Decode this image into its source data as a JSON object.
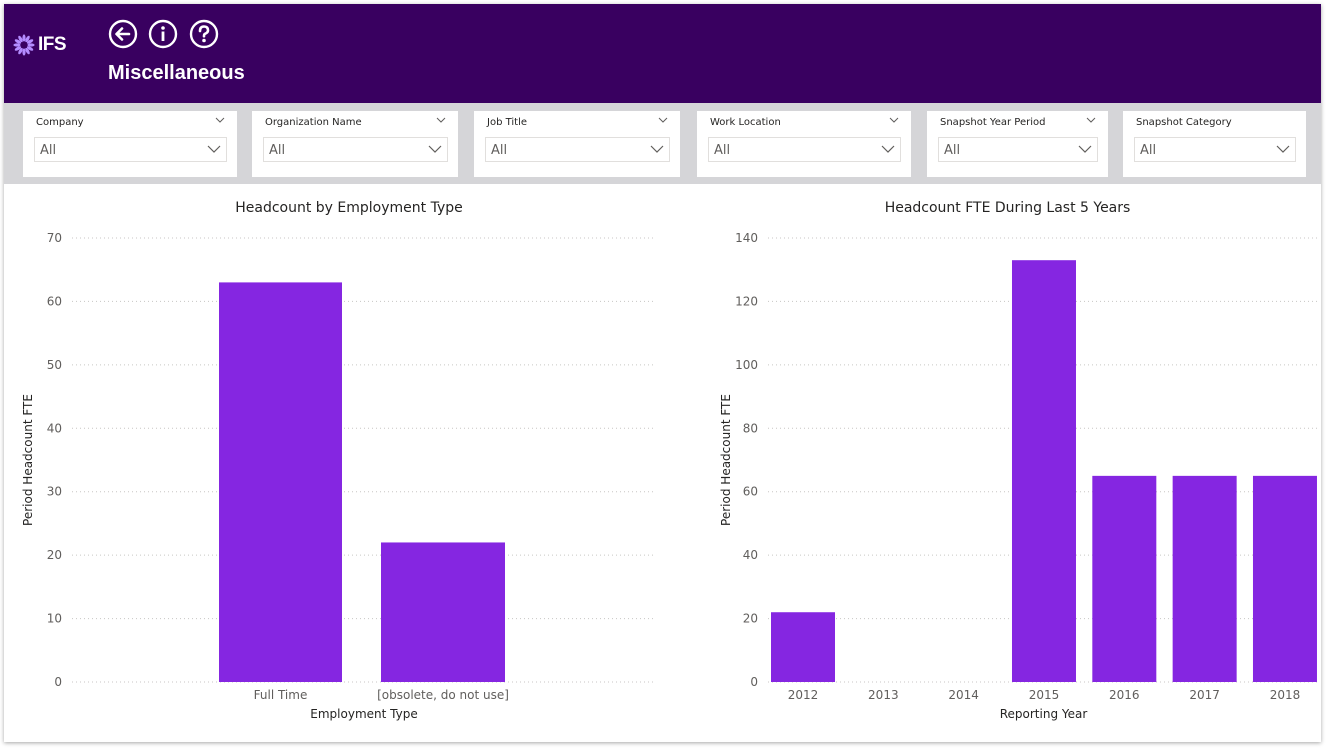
{
  "header": {
    "logo_text": "IFS",
    "title": "Miscellaneous",
    "nav": [
      "back-icon",
      "info-icon",
      "help-icon"
    ]
  },
  "filters": [
    {
      "label": "Company",
      "value": "All"
    },
    {
      "label": "Organization Name",
      "value": "All"
    },
    {
      "label": "Job Title",
      "value": "All"
    },
    {
      "label": "Work Location",
      "value": "All"
    },
    {
      "label": "Snapshot Year Period",
      "value": "All"
    },
    {
      "label": "Snapshot Category",
      "value": "All"
    }
  ],
  "colors": {
    "header_bg": "#390060",
    "bar": "#8526e1",
    "filter_bg": "#d5d5d8"
  },
  "chart_data": [
    {
      "type": "bar",
      "title": "Headcount by Employment Type",
      "xlabel": "Employment Type",
      "ylabel": "Period Headcount FTE",
      "categories": [
        "Full Time",
        "[obsolete, do not use]"
      ],
      "values": [
        63,
        22
      ],
      "ylim": [
        0,
        70
      ],
      "yticks": [
        0,
        10,
        20,
        30,
        40,
        50,
        60,
        70
      ],
      "grid": true
    },
    {
      "type": "bar",
      "title": "Headcount FTE During Last 5 Years",
      "xlabel": "Reporting Year",
      "ylabel": "Period Headcount FTE",
      "categories": [
        "2012",
        "2013",
        "2014",
        "2015",
        "2016",
        "2017",
        "2018"
      ],
      "values": [
        22,
        0,
        0,
        133,
        65,
        65,
        65
      ],
      "ylim": [
        0,
        140
      ],
      "yticks": [
        0,
        20,
        40,
        60,
        80,
        100,
        120,
        140
      ],
      "grid": true
    }
  ]
}
